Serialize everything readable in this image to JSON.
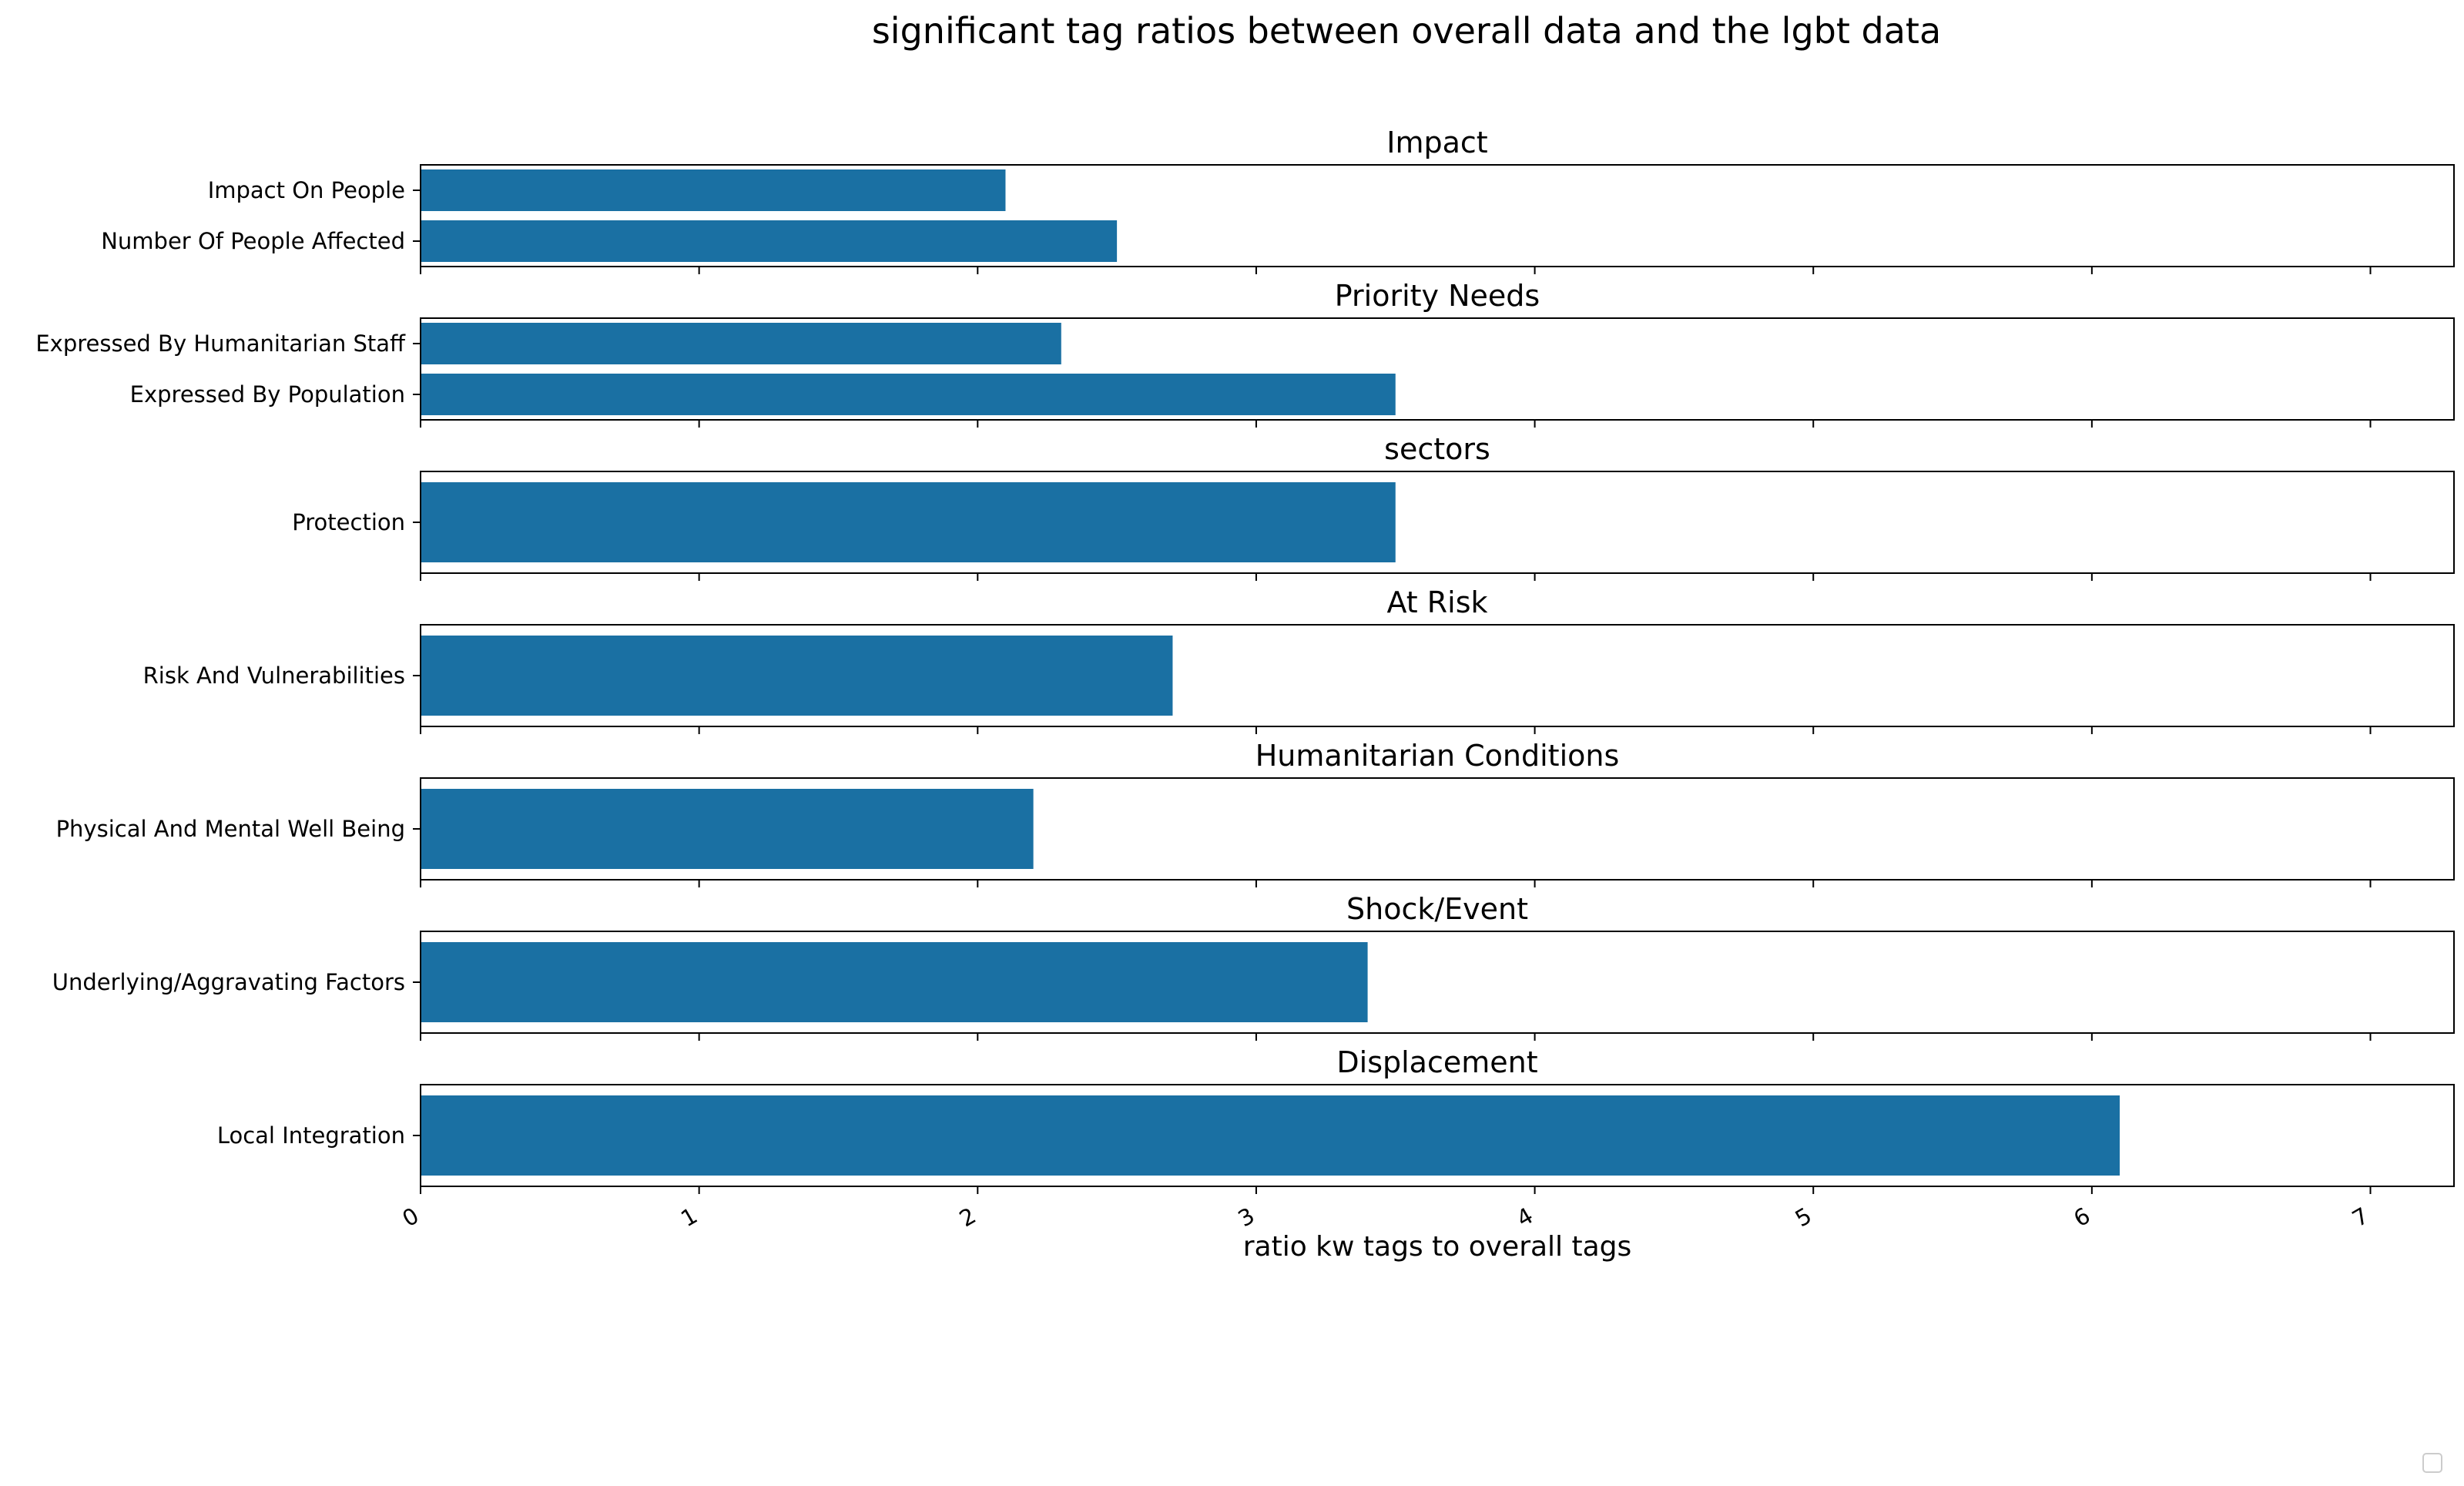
{
  "chart_data": {
    "type": "bar",
    "orientation": "horizontal",
    "title": "significant tag ratios between overall data and the lgbt data",
    "xlabel": "ratio kw tags to overall tags",
    "xlim": [
      0,
      7.3
    ],
    "xticks": [
      0,
      1,
      2,
      3,
      4,
      5,
      6,
      7
    ],
    "xtick_labels": [
      "0",
      "1",
      "2",
      "3",
      "4",
      "5",
      "6",
      "7"
    ],
    "bar_color": "#1a70a3",
    "grid": false,
    "legend": "bottom-right (empty)",
    "panels": [
      {
        "title": "Impact",
        "categories": [
          "Impact On People",
          "Number Of People Affected"
        ],
        "values": [
          2.1,
          2.5
        ]
      },
      {
        "title": "Priority Needs",
        "categories": [
          "Expressed By Humanitarian Staff",
          "Expressed By Population"
        ],
        "values": [
          2.3,
          3.5
        ]
      },
      {
        "title": "sectors",
        "categories": [
          "Protection"
        ],
        "values": [
          3.5
        ]
      },
      {
        "title": "At Risk",
        "categories": [
          "Risk And Vulnerabilities"
        ],
        "values": [
          2.7
        ]
      },
      {
        "title": "Humanitarian Conditions",
        "categories": [
          "Physical And Mental Well Being"
        ],
        "values": [
          2.2
        ]
      },
      {
        "title": "Shock/Event",
        "categories": [
          "Underlying/Aggravating Factors"
        ],
        "values": [
          3.4
        ]
      },
      {
        "title": "Displacement",
        "categories": [
          "Local Integration"
        ],
        "values": [
          6.1
        ]
      }
    ]
  }
}
